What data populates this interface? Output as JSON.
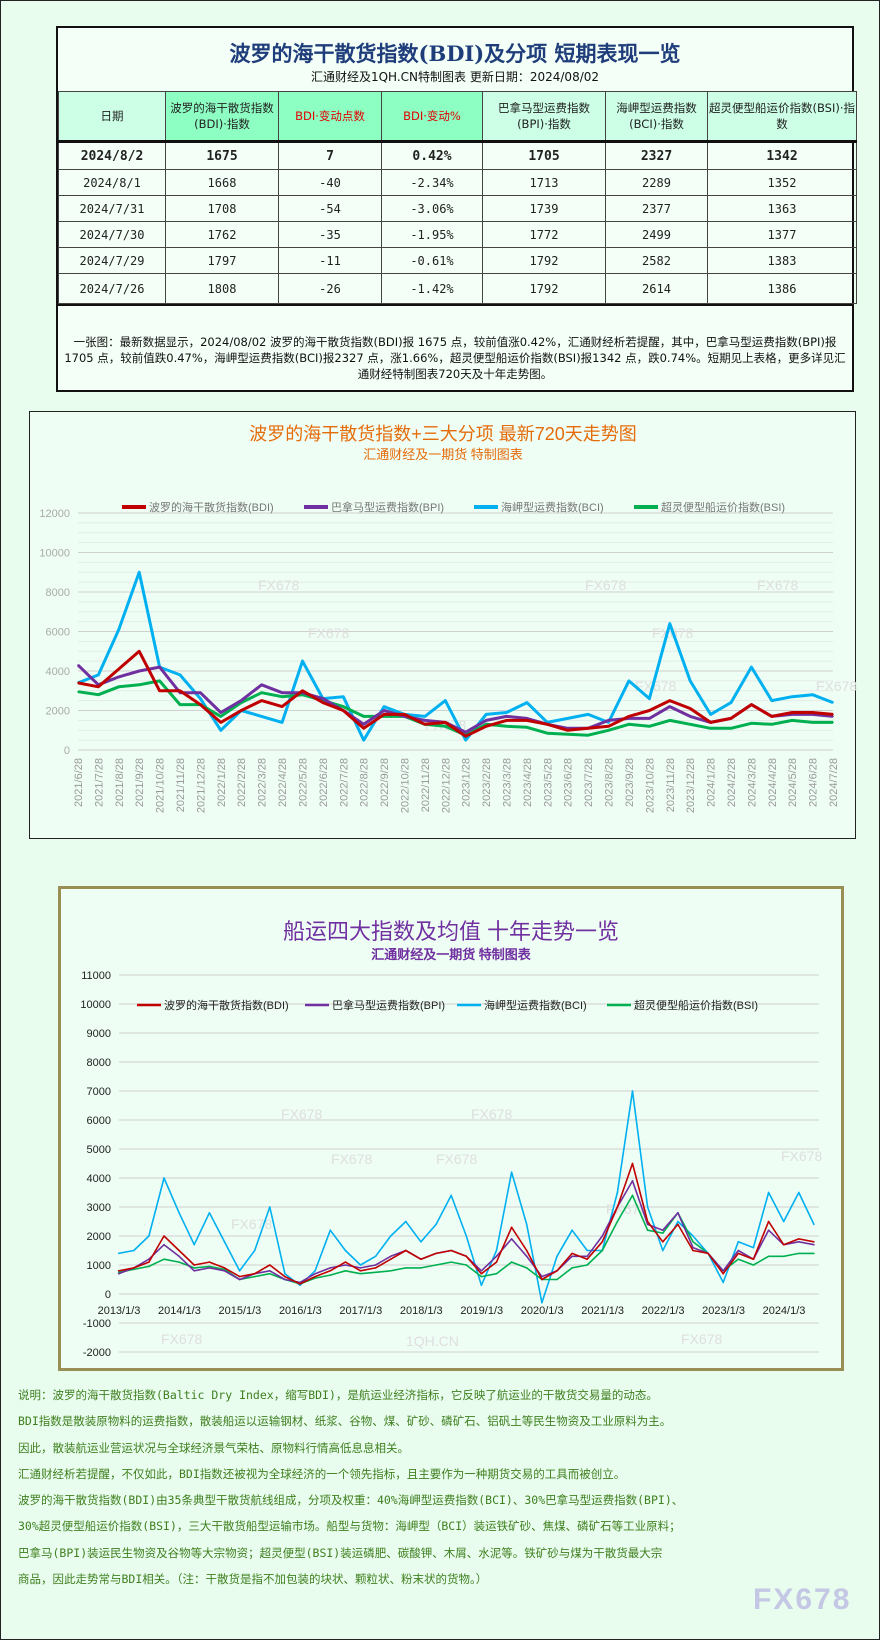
{
  "table": {
    "title": "波罗的海干散货指数(BDI)及分项 短期表现一览",
    "subtitle": "汇通财经及1QH.CN特制图表    更新日期：2024/08/02",
    "headers": [
      "日期",
      "波罗的海干散货指数(BDI)·指数",
      "BDI·变动点数",
      "BDI·变动%",
      "巴拿马型运费指数(BPI)·指数",
      "海岬型运费指数(BCI)·指数",
      "超灵便型船运价指数(BSI)·指数"
    ],
    "rows": [
      [
        "2024/8/2",
        "1675",
        "7",
        "0.42%",
        "1705",
        "2327",
        "1342"
      ],
      [
        "2024/8/1",
        "1668",
        "-40",
        "-2.34%",
        "1713",
        "2289",
        "1352"
      ],
      [
        "2024/7/31",
        "1708",
        "-54",
        "-3.06%",
        "1739",
        "2377",
        "1363"
      ],
      [
        "2024/7/30",
        "1762",
        "-35",
        "-1.95%",
        "1772",
        "2499",
        "1377"
      ],
      [
        "2024/7/29",
        "1797",
        "-11",
        "-0.61%",
        "1792",
        "2582",
        "1383"
      ],
      [
        "2024/7/26",
        "1808",
        "-26",
        "-1.42%",
        "1792",
        "2614",
        "1386"
      ]
    ],
    "note": "一张图：最新数据显示，2024/08/02 波罗的海干散货指数(BDI)报 1675 点，较前值涨0.42%，汇通财经析若提醒，其中，巴拿马型运费指数(BPI)报1705 点，较前值跌0.47%，海岬型运费指数(BCI)报2327 点，涨1.66%，超灵便型船运价指数(BSI)报1342 点，跌0.74%。短期见上表格，更多详见汇通财经特制图表720天及十年走势图。"
  },
  "colors": {
    "BDI": "#c00000",
    "BPI": "#7030a0",
    "BCI": "#00b0f0",
    "BSI": "#00b050",
    "chart1_title": "#e46c0a",
    "chart2_title": "#7030a0"
  },
  "watermark": "FX678",
  "watermark2": "1QH.CN",
  "chart_data": [
    {
      "type": "line",
      "title": "波罗的海干散货指数+三大分项  最新720天走势图",
      "subtitle": "汇通财经及一期货  特制图表",
      "ylim": [
        0,
        12000
      ],
      "yticks": [
        0,
        2000,
        4000,
        6000,
        8000,
        10000,
        12000
      ],
      "grid": true,
      "legend": "top",
      "x": [
        "2021/6/28",
        "2021/7/28",
        "2021/8/28",
        "2021/9/28",
        "2021/10/28",
        "2021/11/28",
        "2021/12/28",
        "2022/1/28",
        "2022/2/28",
        "2022/3/28",
        "2022/4/28",
        "2022/5/28",
        "2022/6/28",
        "2022/7/28",
        "2022/8/28",
        "2022/9/28",
        "2022/10/28",
        "2022/11/28",
        "2022/12/28",
        "2023/1/28",
        "2023/2/28",
        "2023/3/28",
        "2023/4/28",
        "2023/5/28",
        "2023/6/28",
        "2023/7/28",
        "2023/8/28",
        "2023/9/28",
        "2023/10/28",
        "2023/11/28",
        "2023/12/28",
        "2024/1/28",
        "2024/2/28",
        "2024/3/28",
        "2024/4/28",
        "2024/5/28",
        "2024/6/28",
        "2024/7/28"
      ],
      "series": [
        {
          "name": "波罗的海干散货指数(BDI)",
          "key": "BDI",
          "values": [
            3400,
            3200,
            4100,
            5000,
            3000,
            3000,
            2300,
            1400,
            2000,
            2500,
            2200,
            3000,
            2400,
            2000,
            1100,
            1800,
            1800,
            1300,
            1400,
            700,
            1200,
            1500,
            1500,
            1300,
            1000,
            1100,
            1200,
            1700,
            2000,
            2500,
            2100,
            1400,
            1600,
            2300,
            1700,
            1900,
            1900,
            1800
          ]
        },
        {
          "name": "巴拿马型运费指数(BPI)",
          "key": "BPI",
          "values": [
            4300,
            3300,
            3700,
            4000,
            4200,
            2900,
            2900,
            1900,
            2500,
            3300,
            2900,
            2900,
            2600,
            2000,
            1300,
            2000,
            1700,
            1500,
            1400,
            900,
            1500,
            1700,
            1600,
            1300,
            1100,
            1100,
            1500,
            1600,
            1600,
            2200,
            1700,
            1400,
            1600,
            2300,
            1700,
            1800,
            1800,
            1700
          ]
        },
        {
          "name": "海岬型运费指数(BCI)",
          "key": "BCI",
          "values": [
            3400,
            3800,
            6100,
            9000,
            4200,
            3800,
            2600,
            1000,
            2000,
            1700,
            1400,
            4500,
            2600,
            2700,
            500,
            2200,
            1800,
            1700,
            2500,
            500,
            1800,
            1900,
            2400,
            1400,
            1600,
            1800,
            1400,
            3500,
            2600,
            6400,
            3500,
            1800,
            2400,
            4200,
            2500,
            2700,
            2800,
            2400
          ]
        },
        {
          "name": "超灵便型船运价指数(BSI)",
          "key": "BSI",
          "values": [
            2950,
            2800,
            3200,
            3300,
            3500,
            2300,
            2300,
            1700,
            2400,
            2900,
            2700,
            2800,
            2500,
            2200,
            1700,
            1700,
            1700,
            1300,
            1200,
            750,
            1300,
            1200,
            1150,
            850,
            800,
            750,
            1000,
            1300,
            1200,
            1500,
            1300,
            1100,
            1100,
            1350,
            1300,
            1500,
            1400,
            1400
          ]
        }
      ]
    },
    {
      "type": "line",
      "title": "船运四大指数及均值 十年走势一览",
      "subtitle": "汇通财经及一期货 特制图表",
      "ylim": [
        -2000,
        11000
      ],
      "yticks": [
        -2000,
        -1000,
        0,
        1000,
        2000,
        3000,
        4000,
        5000,
        6000,
        7000,
        8000,
        9000,
        10000,
        11000
      ],
      "grid": true,
      "legend": "top",
      "xticks": [
        "2013/1/3",
        "2014/1/3",
        "2015/1/3",
        "2016/1/3",
        "2017/1/3",
        "2018/1/3",
        "2019/1/3",
        "2020/1/3",
        "2021/1/3",
        "2022/1/3",
        "2023/1/3",
        "2024/1/3"
      ],
      "x": [
        "2013/1",
        "2013/4",
        "2013/7",
        "2013/10",
        "2014/1",
        "2014/4",
        "2014/7",
        "2014/10",
        "2015/1",
        "2015/4",
        "2015/7",
        "2015/10",
        "2016/1",
        "2016/4",
        "2016/7",
        "2016/10",
        "2017/1",
        "2017/4",
        "2017/7",
        "2017/10",
        "2018/1",
        "2018/4",
        "2018/7",
        "2018/10",
        "2019/1",
        "2019/4",
        "2019/7",
        "2019/10",
        "2020/1",
        "2020/4",
        "2020/7",
        "2020/10",
        "2021/1",
        "2021/4",
        "2021/7",
        "2021/10",
        "2022/1",
        "2022/4",
        "2022/7",
        "2022/10",
        "2023/1",
        "2023/4",
        "2023/7",
        "2023/10",
        "2024/1",
        "2024/4",
        "2024/7"
      ],
      "series": [
        {
          "name": "波罗的海干散货指数(BDI)",
          "key": "BDI",
          "values": [
            800,
            900,
            1100,
            2000,
            1500,
            1000,
            1100,
            900,
            600,
            700,
            1000,
            600,
            350,
            600,
            800,
            1100,
            800,
            900,
            1200,
            1500,
            1200,
            1400,
            1500,
            1300,
            700,
            1100,
            2300,
            1500,
            500,
            800,
            1400,
            1200,
            1800,
            3000,
            4500,
            2500,
            1800,
            2400,
            1500,
            1400,
            700,
            1400,
            1200,
            2500,
            1700,
            1900,
            1800
          ]
        },
        {
          "name": "巴拿马型运费指数(BPI)",
          "key": "BPI",
          "values": [
            700,
            900,
            1200,
            1700,
            1300,
            800,
            900,
            800,
            500,
            700,
            800,
            500,
            400,
            700,
            900,
            1000,
            900,
            1000,
            1300,
            1500,
            1200,
            1400,
            1500,
            1300,
            800,
            1300,
            1900,
            1300,
            600,
            800,
            1300,
            1300,
            2000,
            3000,
            3900,
            2400,
            2200,
            2800,
            1600,
            1400,
            800,
            1500,
            1200,
            2200,
            1700,
            1800,
            1700
          ]
        },
        {
          "name": "海岬型运费指数(BCI)",
          "key": "BCI",
          "values": [
            1400,
            1500,
            2000,
            4000,
            2800,
            1700,
            2800,
            1800,
            800,
            1500,
            3000,
            700,
            300,
            800,
            2200,
            1500,
            1000,
            1300,
            2000,
            2500,
            1800,
            2400,
            3400,
            2000,
            300,
            1500,
            4200,
            2400,
            -300,
            1300,
            2200,
            1500,
            1500,
            3500,
            7000,
            3000,
            1500,
            2500,
            2000,
            1400,
            400,
            1800,
            1600,
            3500,
            2500,
            3500,
            2400
          ]
        },
        {
          "name": "超灵便型船运价指数(BSI)",
          "key": "BSI",
          "values": [
            750,
            850,
            950,
            1200,
            1100,
            900,
            950,
            850,
            500,
            600,
            700,
            500,
            350,
            550,
            650,
            800,
            700,
            750,
            800,
            900,
            900,
            1000,
            1100,
            1000,
            600,
            700,
            1100,
            900,
            500,
            500,
            900,
            1000,
            1500,
            2500,
            3400,
            2200,
            2100,
            2800,
            1800,
            1400,
            800,
            1200,
            1000,
            1300,
            1300,
            1400,
            1400
          ]
        }
      ]
    }
  ],
  "description": [
    "说明：波罗的海干散货指数(Baltic Dry Index，缩写BDI)，是航运业经济指标，它反映了航运业的干散货交易量的动态。",
    "BDI指数是散装原物料的运费指数，散装船运以运输钢材、纸浆、谷物、煤、矿砂、磷矿石、铝矾土等民生物资及工业原料为主。",
    "因此，散装航运业营运状况与全球经济景气荣枯、原物料行情高低息息相关。",
    "汇通财经析若提醒，不仅如此，BDI指数还被视为全球经济的一个领先指标，且主要作为一种期货交易的工具而被创立。",
    "波罗的海干散货指数(BDI)由35条典型干散货航线组成，分项及权重：40%海岬型运费指数(BCI)、30%巴拿马型运费指数(BPI)、",
    "30%超灵便型船运价指数(BSI)，三大干散货船型运输市场。船型与货物：海岬型（BCI）装运铁矿砂、焦煤、磷矿石等工业原料；",
    "巴拿马(BPI)装运民生物资及谷物等大宗物资；超灵便型(BSI)装运磷肥、碳酸钾、木屑、水泥等。铁矿砂与煤为干散货最大宗",
    "商品，因此走势常与BDI相关。（注：干散货是指不加包装的块状、颗粒状、粉末状的货物。）"
  ]
}
